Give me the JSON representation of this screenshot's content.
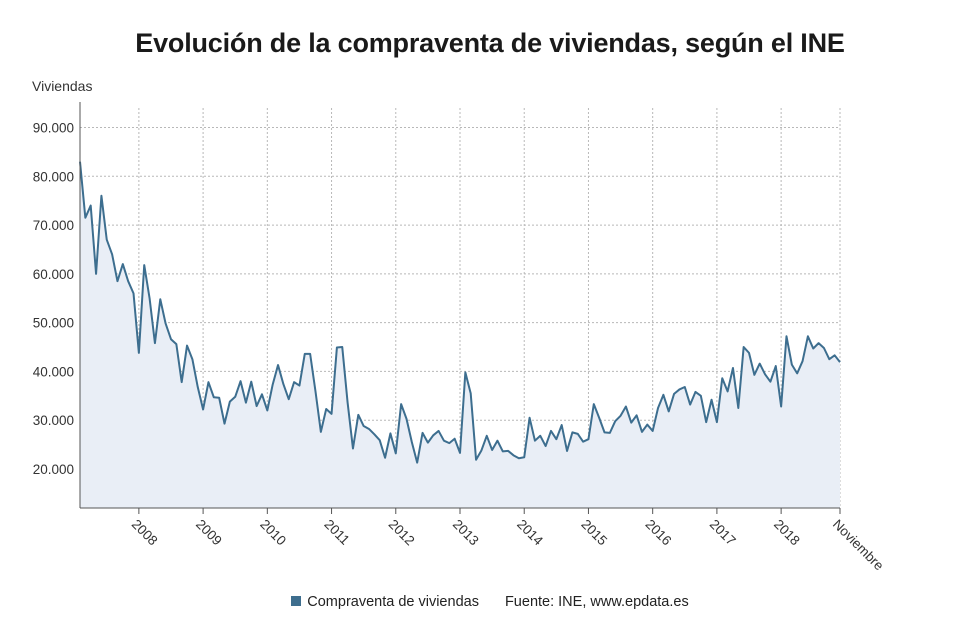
{
  "title": "Evolución de la compraventa de viviendas, según el INE",
  "colors": {
    "line": "#3d6e8f",
    "fill": "#e9eef6",
    "grid": "#b8b8b8",
    "axis": "#555555"
  },
  "legend": {
    "series_label": "Compraventa de viviendas",
    "source": "Fuente: INE, www.epdata.es"
  },
  "chart_data": {
    "type": "area",
    "ylabel": "Viviendas",
    "xlabel": "",
    "ylim": [
      12000,
      94000
    ],
    "yticks": [
      20000,
      30000,
      40000,
      50000,
      60000,
      70000,
      80000,
      90000
    ],
    "ytick_labels": [
      "20.000",
      "30.000",
      "40.000",
      "50.000",
      "60.000",
      "70.000",
      "80.000",
      "90.000"
    ],
    "xticks": [
      "2008",
      "2009",
      "2010",
      "2011",
      "2012",
      "2013",
      "2014",
      "2015",
      "2016",
      "2017",
      "2018",
      "Noviembre"
    ],
    "grid": true,
    "series": [
      {
        "name": "Compraventa de viviendas",
        "values": [
          83000,
          71500,
          74000,
          60000,
          76000,
          67000,
          64000,
          58500,
          62000,
          58500,
          56000,
          43800,
          61800,
          55000,
          45800,
          54800,
          49800,
          46600,
          45600,
          37800,
          45300,
          42500,
          36800,
          32200,
          37800,
          34700,
          34600,
          29300,
          33800,
          34800,
          38000,
          33600,
          37900,
          32900,
          35300,
          32000,
          37300,
          41300,
          37400,
          34300,
          37800,
          37100,
          43600,
          43600,
          35900,
          27600,
          32300,
          31300,
          44900,
          45000,
          33600,
          24200,
          31100,
          28800,
          28200,
          27100,
          25900,
          22300,
          27300,
          23200,
          33300,
          30300,
          25500,
          21300,
          27400,
          25400,
          26900,
          27800,
          25800,
          25300,
          26200,
          23300,
          39800,
          35500,
          21900,
          23800,
          26800,
          23900,
          25800,
          23600,
          23700,
          22800,
          22200,
          22400,
          30500,
          25800,
          26800,
          24700,
          27800,
          26100,
          29000,
          23700,
          27500,
          27200,
          25600,
          26100,
          33300,
          30500,
          27500,
          27400,
          29800,
          30900,
          32800,
          29500,
          31000,
          27600,
          29100,
          27800,
          32500,
          35200,
          31800,
          35400,
          36300,
          36800,
          33200,
          35800,
          35000,
          29600,
          34200,
          29600,
          38600,
          35900,
          40700,
          32500,
          45000,
          43800,
          39300,
          41600,
          39400,
          37900,
          41100,
          32800,
          47200,
          41400,
          39600,
          42100,
          47200,
          44700,
          45800,
          44800,
          42500,
          43300,
          41900
        ]
      }
    ]
  }
}
